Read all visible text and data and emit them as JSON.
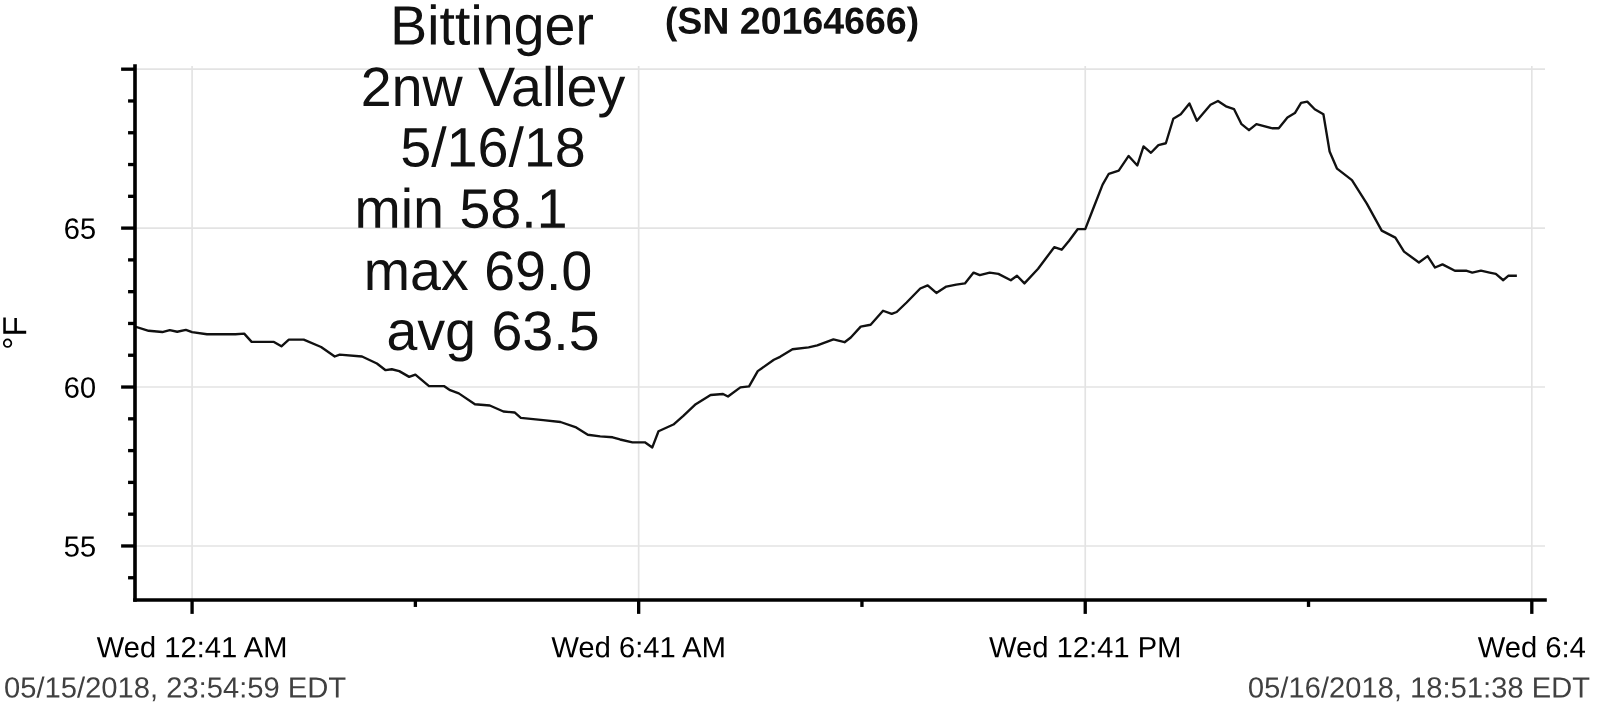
{
  "chart_data": {
    "type": "line",
    "title": "(SN 20164666)",
    "ylabel": "°F",
    "annotations": [
      "Bittinger",
      "2nw Valley",
      "5/16/18",
      "min 58.1",
      "max 69.0",
      "avg 63.5",
      "05/15/2018, 23:54:59 EDT",
      "05/16/2018, 18:51:38 EDT"
    ],
    "x": [
      "2018-05-15T23:55",
      "2018-05-16T00:06",
      "2018-05-16T00:17",
      "2018-05-16T00:23",
      "2018-05-16T00:29",
      "2018-05-16T00:36",
      "2018-05-16T00:41",
      "2018-05-16T00:53",
      "2018-05-16T01:16",
      "2018-05-16T01:23",
      "2018-05-16T01:29",
      "2018-05-16T01:47",
      "2018-05-16T01:53",
      "2018-05-16T01:59",
      "2018-05-16T02:11",
      "2018-05-16T02:25",
      "2018-05-16T02:36",
      "2018-05-16T02:40",
      "2018-05-16T02:58",
      "2018-05-16T03:10",
      "2018-05-16T03:17",
      "2018-05-16T03:22",
      "2018-05-16T03:28",
      "2018-05-16T03:36",
      "2018-05-16T03:41",
      "2018-05-16T03:52",
      "2018-05-16T04:04",
      "2018-05-16T04:09",
      "2018-05-16T04:16",
      "2018-05-16T04:29",
      "2018-05-16T04:41",
      "2018-05-16T04:52",
      "2018-05-16T05:01",
      "2018-05-16T05:06",
      "2018-05-16T05:24",
      "2018-05-16T05:38",
      "2018-05-16T05:50",
      "2018-05-16T06:00",
      "2018-05-16T06:10",
      "2018-05-16T06:20",
      "2018-05-16T06:26",
      "2018-05-16T06:36",
      "2018-05-16T06:46",
      "2018-05-16T06:52",
      "2018-05-16T06:57",
      "2018-05-16T07:09",
      "2018-05-16T07:17",
      "2018-05-16T07:27",
      "2018-05-16T07:39",
      "2018-05-16T07:49",
      "2018-05-16T07:53",
      "2018-05-16T08:03",
      "2018-05-16T08:10",
      "2018-05-16T08:17",
      "2018-05-16T08:30",
      "2018-05-16T08:35",
      "2018-05-16T08:45",
      "2018-05-16T08:58",
      "2018-05-16T09:05",
      "2018-05-16T09:18",
      "2018-05-16T09:27",
      "2018-05-16T09:32",
      "2018-05-16T09:40",
      "2018-05-16T09:48",
      "2018-05-16T09:58",
      "2018-05-16T10:05",
      "2018-05-16T10:09",
      "2018-05-16T10:17",
      "2018-05-16T10:28",
      "2018-05-16T10:34",
      "2018-05-16T10:41",
      "2018-05-16T10:49",
      "2018-05-16T10:57",
      "2018-05-16T11:04",
      "2018-05-16T11:11",
      "2018-05-16T11:16",
      "2018-05-16T11:24",
      "2018-05-16T11:31",
      "2018-05-16T11:41",
      "2018-05-16T11:46",
      "2018-05-16T11:52",
      "2018-05-16T12:03",
      "2018-05-16T12:16",
      "2018-05-16T12:22",
      "2018-05-16T12:28",
      "2018-05-16T12:35",
      "2018-05-16T12:41",
      "2018-05-16T12:47",
      "2018-05-16T12:55",
      "2018-05-16T13:00",
      "2018-05-16T13:08",
      "2018-05-16T13:16",
      "2018-05-16T13:23",
      "2018-05-16T13:28",
      "2018-05-16T13:34",
      "2018-05-16T13:40",
      "2018-05-16T13:46",
      "2018-05-16T13:52",
      "2018-05-16T13:58",
      "2018-05-16T14:05",
      "2018-05-16T14:11",
      "2018-05-16T14:22",
      "2018-05-16T14:28",
      "2018-05-16T14:35",
      "2018-05-16T14:41",
      "2018-05-16T14:47",
      "2018-05-16T14:53",
      "2018-05-16T14:59",
      "2018-05-16T15:12",
      "2018-05-16T15:17",
      "2018-05-16T15:24",
      "2018-05-16T15:30",
      "2018-05-16T15:35",
      "2018-05-16T15:40",
      "2018-05-16T15:46",
      "2018-05-16T15:53",
      "2018-05-16T15:58",
      "2018-05-16T16:04",
      "2018-05-16T16:16",
      "2018-05-16T16:28",
      "2018-05-16T16:40",
      "2018-05-16T16:51",
      "2018-05-16T16:58",
      "2018-05-16T17:10",
      "2018-05-16T17:17",
      "2018-05-16T17:23",
      "2018-05-16T17:29",
      "2018-05-16T17:39",
      "2018-05-16T17:48",
      "2018-05-16T17:53",
      "2018-05-16T18:00",
      "2018-05-16T18:07",
      "2018-05-16T18:12",
      "2018-05-16T18:18",
      "2018-05-16T18:22",
      "2018-05-16T18:28"
    ],
    "series": [
      {
        "color": "#111111",
        "values": [
          61.9,
          61.77,
          61.73,
          61.79,
          61.74,
          61.8,
          61.73,
          61.66,
          61.66,
          61.68,
          61.42,
          61.42,
          61.28,
          61.49,
          61.49,
          61.26,
          60.96,
          61.02,
          60.96,
          60.74,
          60.53,
          60.56,
          60.5,
          60.32,
          60.39,
          60.03,
          60.03,
          59.9,
          59.8,
          59.46,
          59.42,
          59.23,
          59.2,
          59.03,
          58.96,
          58.9,
          58.74,
          58.5,
          58.45,
          58.42,
          58.35,
          58.26,
          58.26,
          58.1,
          58.61,
          58.82,
          59.09,
          59.46,
          59.75,
          59.78,
          59.7,
          59.99,
          60.02,
          60.5,
          60.86,
          60.95,
          61.19,
          61.25,
          61.31,
          61.5,
          61.41,
          61.56,
          61.9,
          61.96,
          62.4,
          62.3,
          62.36,
          62.66,
          63.1,
          63.2,
          62.96,
          63.16,
          63.22,
          63.26,
          63.6,
          63.52,
          63.6,
          63.56,
          63.36,
          63.5,
          63.26,
          63.72,
          64.4,
          64.32,
          64.6,
          64.97,
          64.97,
          65.57,
          66.37,
          66.71,
          66.81,
          67.27,
          66.97,
          67.57,
          67.37,
          67.61,
          67.67,
          68.44,
          68.58,
          68.92,
          68.38,
          68.88,
          69.0,
          68.82,
          68.74,
          68.27,
          68.08,
          68.27,
          68.14,
          68.14,
          68.48,
          68.62,
          68.94,
          68.98,
          68.74,
          68.58,
          67.41,
          66.87,
          66.51,
          65.77,
          64.92,
          64.7,
          64.26,
          63.92,
          64.12,
          63.76,
          63.86,
          63.66,
          63.66,
          63.6,
          63.66,
          63.6,
          63.56,
          63.36,
          63.5,
          63.5
        ]
      }
    ],
    "xlim": [
      "2018-05-15T23:54:59",
      "2018-05-16T18:51:38"
    ],
    "xticks": [
      {
        "value": "2018-05-16T00:41",
        "label": "Wed 12:41 AM"
      },
      {
        "value": "2018-05-16T06:41",
        "label": "Wed 6:41 AM"
      },
      {
        "value": "2018-05-16T12:41",
        "label": "Wed 12:41 PM"
      },
      {
        "value": "2018-05-16T18:41",
        "label": "Wed 6:4"
      }
    ],
    "ylim": [
      53.3,
      70.1
    ],
    "yticks": [
      55,
      60,
      65,
      {
        "value": 70,
        "label": null
      }
    ],
    "grid": true
  }
}
